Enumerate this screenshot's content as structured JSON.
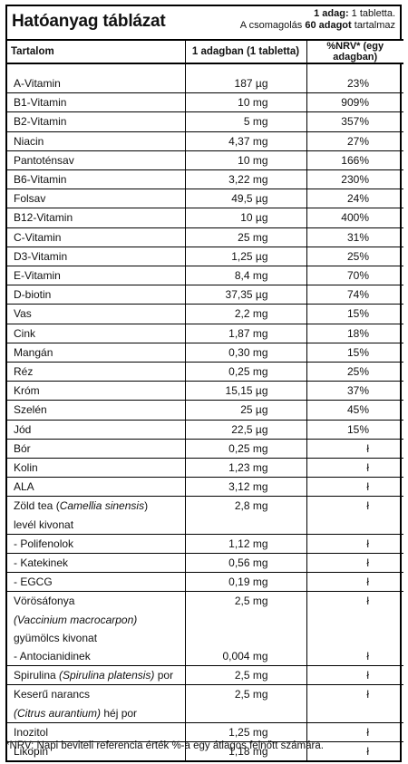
{
  "title": "Hatóanyag táblázat",
  "serving_info": {
    "line1_prefix": "1 adag:",
    "line1_value": " 1 tabletta.",
    "line2_prefix": "A csomagolás ",
    "line2_bold": "60 adagot",
    "line2_suffix": " tartalmaz"
  },
  "columns": [
    "Tartalom",
    "1 adagban (1 tabletta)",
    "%NRV* (egy adagban)"
  ],
  "rows": [
    {
      "name": "A-Vitamin",
      "amount": "187 µg",
      "nrv": "23%"
    },
    {
      "name": "B1-Vitamin",
      "amount": "10 mg",
      "nrv": "909%"
    },
    {
      "name": "B2-Vitamin",
      "amount": "5 mg",
      "nrv": "357%"
    },
    {
      "name": "Niacin",
      "amount": "4,37 mg",
      "nrv": "27%"
    },
    {
      "name": "Pantoténsav",
      "amount": "10  mg",
      "nrv": "166%"
    },
    {
      "name": "B6-Vitamin",
      "amount": "3,22 mg",
      "nrv": "230%"
    },
    {
      "name": "Folsav",
      "amount": "49,5 µg",
      "nrv": "24%"
    },
    {
      "name": "B12-Vitamin",
      "amount": "10 µg",
      "nrv": "400%"
    },
    {
      "name": "C-Vitamin",
      "amount": "25 mg",
      "nrv": "31%"
    },
    {
      "name": "D3-Vitamin",
      "amount": "1,25 µg",
      "nrv": "25%"
    },
    {
      "name": "E-Vitamin",
      "amount": "8,4 mg",
      "nrv": "70%"
    },
    {
      "name": "D-biotin",
      "amount": "37,35 µg",
      "nrv": "74%"
    },
    {
      "name": "Vas",
      "amount": "2,2 mg",
      "nrv": "15%"
    },
    {
      "name": "Cink",
      "amount": "1,87 mg",
      "nrv": "18%"
    },
    {
      "name": "Mangán",
      "amount": "0,30 mg",
      "nrv": "15%"
    },
    {
      "name": "Réz",
      "amount": "0,25 mg",
      "nrv": "25%"
    },
    {
      "name": "Króm",
      "amount": "15,15 µg",
      "nrv": "37%"
    },
    {
      "name": "Szelén",
      "amount": "25 µg",
      "nrv": "45%"
    },
    {
      "name": "Jód",
      "amount": "22,5 µg",
      "nrv": "15%"
    },
    {
      "name": "Bór",
      "amount": "0,25 mg",
      "nrv": "ł"
    },
    {
      "name": "Kolin",
      "amount": "1,23 mg",
      "nrv": "ł"
    },
    {
      "name": "ALA",
      "amount": "3,12 mg",
      "nrv": "ł"
    }
  ],
  "green_tea": {
    "name_a": "Zöld tea (",
    "name_latin": "Camellia sinensis",
    "name_b": ")",
    "name_line2": "levél kivonat",
    "amount": "2,8 mg",
    "nrv": "ł"
  },
  "rows2": [
    {
      "name": "- Polifenolok",
      "amount": "1,12 mg",
      "nrv": "ł"
    },
    {
      "name": "- Katekinek",
      "amount": "0,56 mg",
      "nrv": "ł"
    },
    {
      "name": "- EGCG",
      "amount": "0,19 mg",
      "nrv": "ł"
    }
  ],
  "cranberry": {
    "name_line1": "Vörösáfonya",
    "name_latin": "(Vaccinium macrocarpon)",
    "name_line3": "gyümölcs kivonat",
    "amount": "2,5 mg",
    "nrv": "ł",
    "sub_name": "- Antocianidinek",
    "sub_amount": "0,004 mg",
    "sub_nrv": "ł"
  },
  "spirulina": {
    "name_a": "Spirulina ",
    "name_latin": "(Spirulina platensis)",
    "name_b": " por",
    "amount": "2,5 mg",
    "nrv": "ł"
  },
  "orange": {
    "name_line1": "Keserű narancs",
    "name_latin": "(Citrus aurantium)",
    "name_b": " héj por",
    "amount": "2,5 mg",
    "nrv": "ł"
  },
  "rows3": [
    {
      "name": "Inozitol",
      "amount": "1,25 mg",
      "nrv": "ł"
    },
    {
      "name": "Likopin",
      "amount": "1,18 mg",
      "nrv": "ł"
    }
  ],
  "footnote": "*NRV: Napi beviteli referencia érték %-a egy átlagos felnőtt számára."
}
